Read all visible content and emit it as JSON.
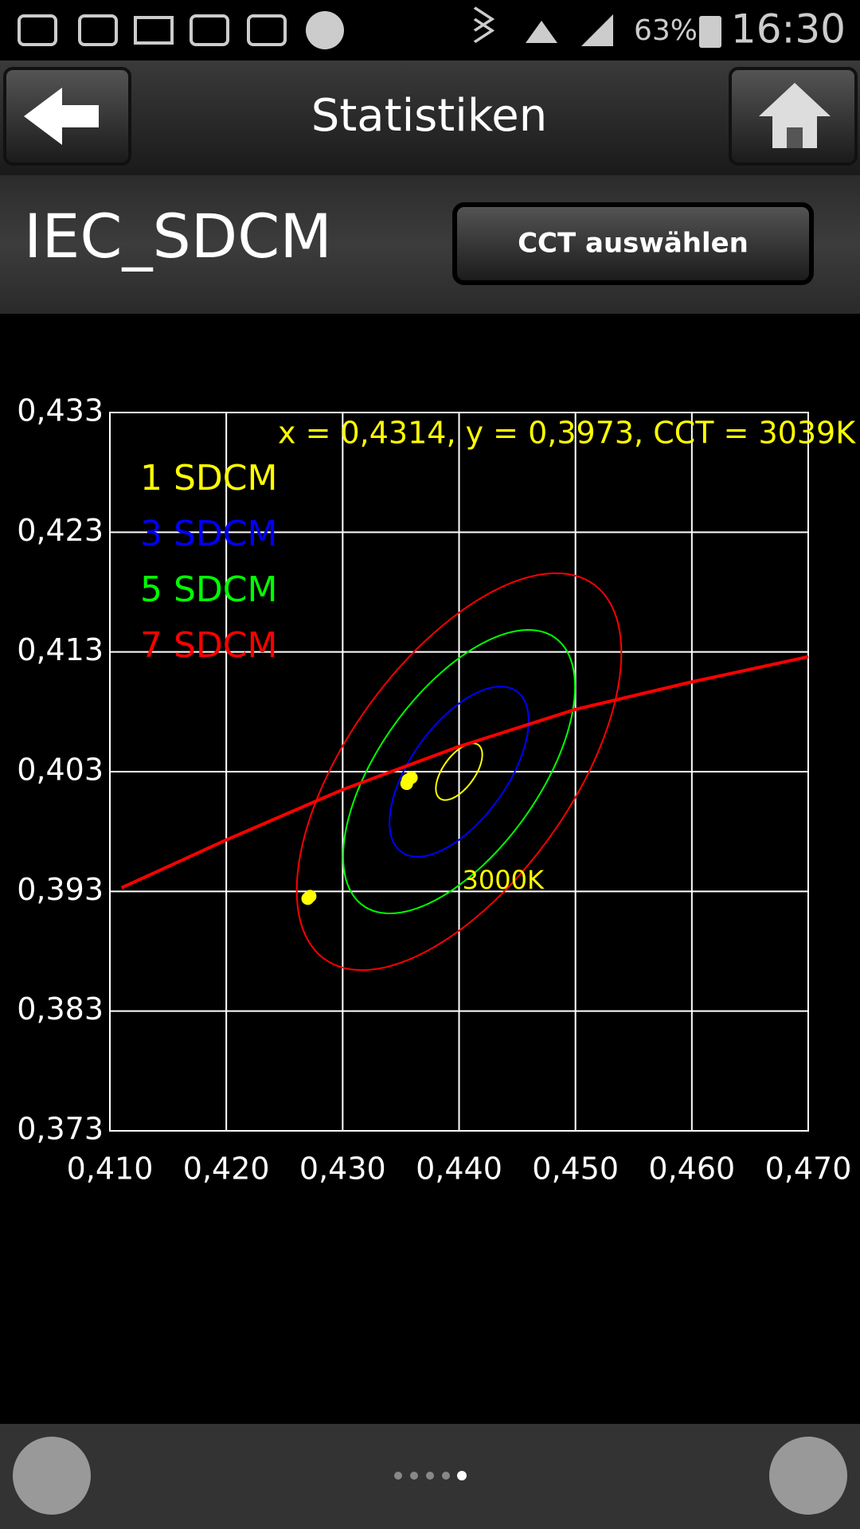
{
  "status_bar": {
    "battery": "63%",
    "time": "16:30"
  },
  "header": {
    "title": "Statistiken"
  },
  "toolbar": {
    "title": "IEC_SDCM",
    "button": "CCT auswählen"
  },
  "chart_data": {
    "type": "scatter",
    "annotation": "x = 0,4314, y = 0,3973, CCT = 3039K",
    "center_label": "3000K",
    "xlim": [
      0.41,
      0.47
    ],
    "xticks": [
      {
        "value": 0.41,
        "label": "0,410"
      },
      {
        "value": 0.42,
        "label": "0,420"
      },
      {
        "value": 0.43,
        "label": "0,430"
      },
      {
        "value": 0.44,
        "label": "0,440"
      },
      {
        "value": 0.45,
        "label": "0,450"
      },
      {
        "value": 0.46,
        "label": "0,460"
      },
      {
        "value": 0.47,
        "label": "0,470"
      }
    ],
    "ylim": [
      0.373,
      0.433
    ],
    "yticks": [
      {
        "value": 0.373,
        "label": "0,373"
      },
      {
        "value": 0.383,
        "label": "0,383"
      },
      {
        "value": 0.393,
        "label": "0,393"
      },
      {
        "value": 0.403,
        "label": "0,403"
      },
      {
        "value": 0.413,
        "label": "0,413"
      },
      {
        "value": 0.423,
        "label": "0,423"
      },
      {
        "value": 0.433,
        "label": "0,433"
      }
    ],
    "grid": true,
    "legend": "upper left",
    "points": {
      "color": "#ffff00",
      "x": [
        0.4356,
        0.4359,
        0.4355,
        0.427,
        0.4272
      ],
      "y": [
        0.4023,
        0.4025,
        0.402,
        0.3924,
        0.3926
      ]
    },
    "ellipses": {
      "center_x": 0.44,
      "center_y": 0.403,
      "theta": 53.1,
      "series": [
        {
          "name": "1 SDCM",
          "color": "#ffff00",
          "a": 0.00278,
          "b": 0.00136
        },
        {
          "name": "3 SDCM",
          "color": "#0000ff",
          "a": 0.00834,
          "b": 0.00408
        },
        {
          "name": "5 SDCM",
          "color": "#00ff00",
          "a": 0.0139,
          "b": 0.0068
        },
        {
          "name": "7 SDCM",
          "color": "#ff0000",
          "a": 0.01946,
          "b": 0.00952
        }
      ]
    },
    "locus": {
      "color": "#ff0000",
      "x": [
        0.411,
        0.42,
        0.43,
        0.44,
        0.45,
        0.46,
        0.47
      ],
      "y": [
        0.3933,
        0.3973,
        0.4015,
        0.4051,
        0.4082,
        0.4105,
        0.4126
      ]
    }
  }
}
